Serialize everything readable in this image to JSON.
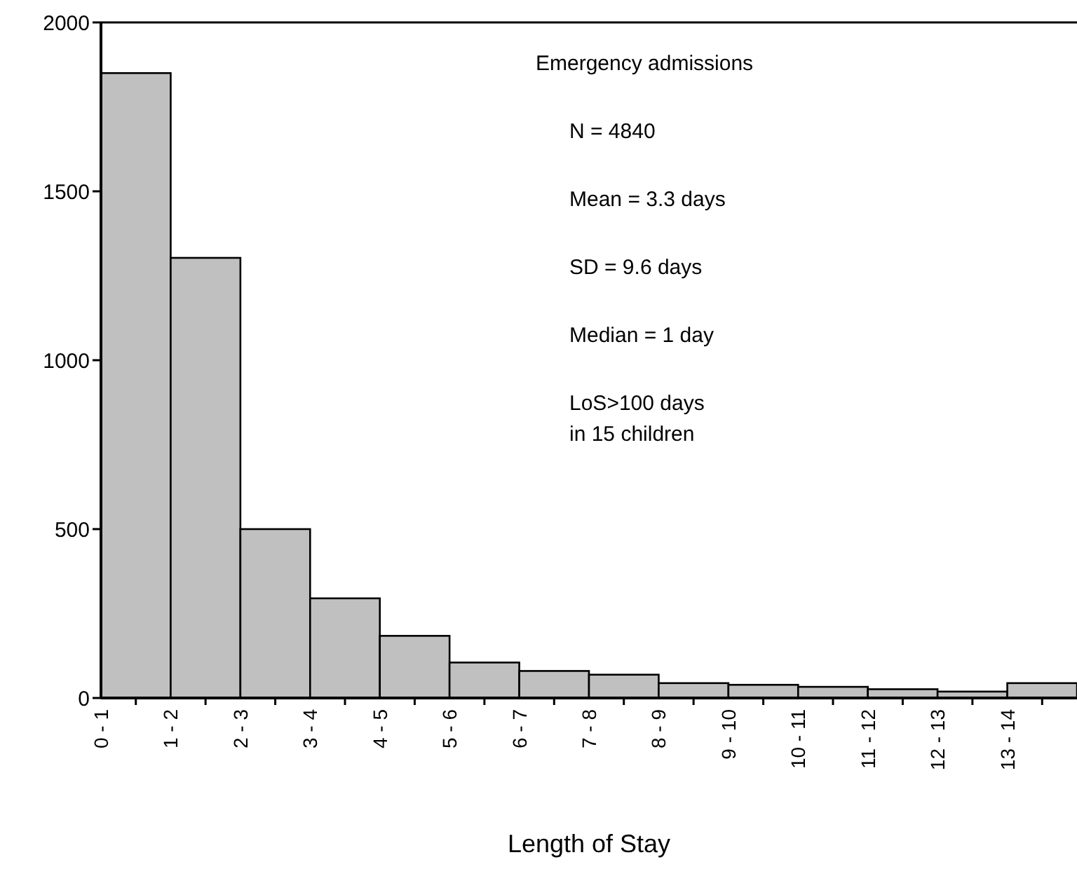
{
  "chart_data": {
    "type": "bar",
    "xlabel": "Length of Stay",
    "categories": [
      "0 - 1",
      "1 - 2",
      "2 - 3",
      "3 - 4",
      "4 - 5",
      "5 - 6",
      "6 - 7",
      "7 - 8",
      "8 - 9",
      "9 - 10",
      "10 - 11",
      "11 - 12",
      "12 - 13",
      "13 - 14"
    ],
    "values": [
      1850,
      1303,
      500,
      295,
      184,
      105,
      80,
      69,
      44,
      39,
      33,
      26,
      19,
      44
    ],
    "color": "#c0c0c0",
    "ylim": [
      0,
      2000
    ],
    "yticks": [
      0,
      500,
      1000,
      1500,
      2000
    ],
    "grid": false,
    "annotations": [
      "Emergency admissions",
      "N = 4840",
      "Mean = 3.3 days",
      "SD = 9.6 days",
      "Median = 1 day",
      "LoS>100 days\nin 15 children"
    ]
  }
}
